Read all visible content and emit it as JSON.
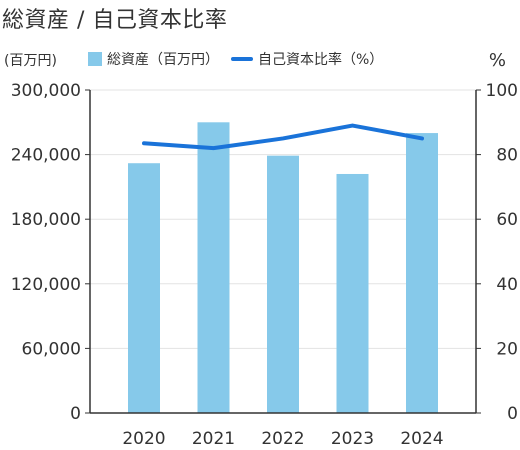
{
  "title": "総資産 / 自己資本比率",
  "colors": {
    "bar": "#86c9ea",
    "line": "#1a73d9",
    "axis": "#333333",
    "grid": "#e3e3e3"
  },
  "chart_data": {
    "type": "bar",
    "title": "総資産 / 自己資本比率",
    "categories": [
      "2020",
      "2021",
      "2022",
      "2023",
      "2024"
    ],
    "left_unit": "(百万円)",
    "right_unit": "%",
    "series": [
      {
        "name": "総資産（百万円）",
        "type": "bar",
        "axis": "left",
        "values": [
          232000,
          270000,
          239000,
          222000,
          260000
        ]
      },
      {
        "name": "自己資本比率（%）",
        "type": "line",
        "axis": "right",
        "values": [
          83.5,
          82,
          85,
          89,
          85
        ]
      }
    ],
    "ylim_left": [
      0,
      300000
    ],
    "ylim_right": [
      0,
      100
    ],
    "yticks_left": [
      "0",
      "60,000",
      "120,000",
      "180,000",
      "240,000",
      "300,000"
    ],
    "yticks_right": [
      "0",
      "20",
      "40",
      "60",
      "80",
      "100"
    ],
    "legend_position": "top",
    "grid": true
  }
}
